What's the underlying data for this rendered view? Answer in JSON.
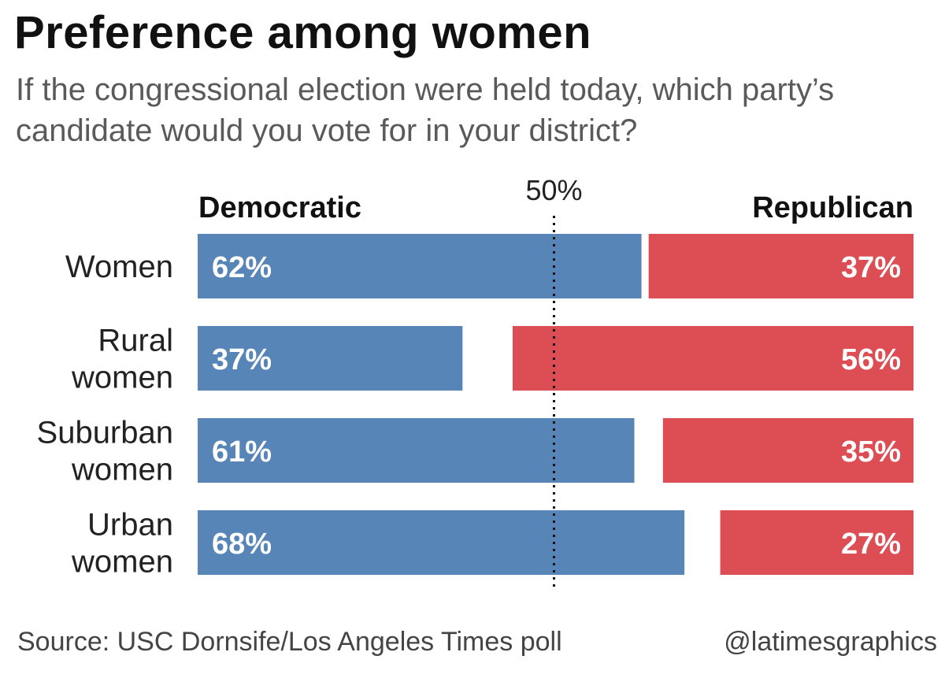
{
  "title": "Preference among women",
  "subtitle": "If the congressional election were held today, which party’s candidate would you vote for in your district?",
  "source": "Source: USC Dornsife/Los Angeles Times poll",
  "credit": "@latimesgraphics",
  "colors": {
    "democratic": "#5785b8",
    "republican": "#dc4e54",
    "reference_line": "#111111"
  },
  "chart_data": {
    "type": "bar",
    "orientation": "horizontal",
    "categories": [
      [
        "Women"
      ],
      [
        "Rural",
        "women"
      ],
      [
        "Suburban",
        "women"
      ],
      [
        "Urban",
        "women"
      ]
    ],
    "series": [
      {
        "name": "Democratic",
        "values": [
          62,
          37,
          61,
          68
        ],
        "labels": [
          "62%",
          "37%",
          "61%",
          "68%"
        ],
        "anchor": "left"
      },
      {
        "name": "Republican",
        "values": [
          37,
          56,
          35,
          27
        ],
        "labels": [
          "37%",
          "56%",
          "35%",
          "27%"
        ],
        "anchor": "right"
      }
    ],
    "reference_line": {
      "value": 50,
      "label": "50%",
      "style": "dotted"
    },
    "xlim": [
      0,
      100
    ],
    "grid": false,
    "legend": "top"
  }
}
